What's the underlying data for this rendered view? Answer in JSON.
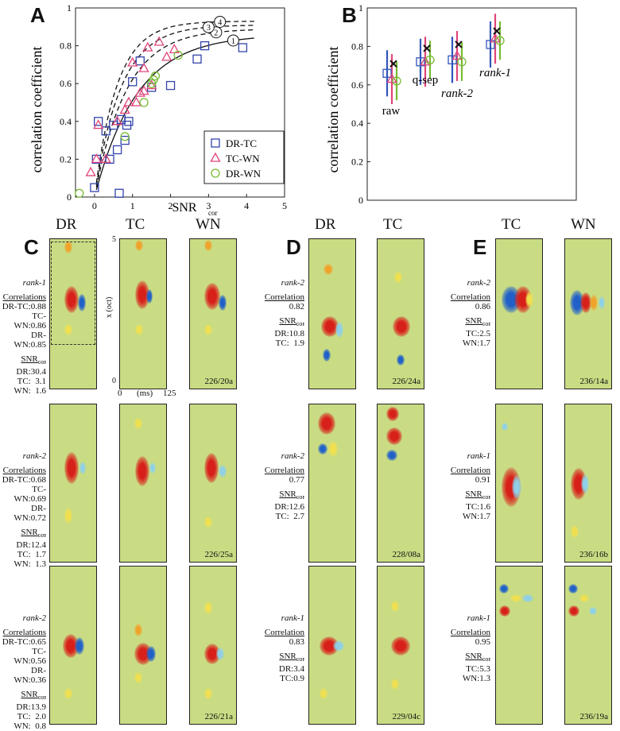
{
  "panel_letters": {
    "a": "A",
    "b": "B",
    "c": "C",
    "d": "D",
    "e": "E"
  },
  "chart_data": [
    {
      "type": "scatter",
      "panel": "A",
      "xlabel": "SNR",
      "xlabel_sub": "cor",
      "ylabel": "correlation coefficient",
      "xlim": [
        -0.5,
        5
      ],
      "ylim": [
        0,
        1
      ],
      "xticks": [
        "0",
        "1",
        "2",
        "3",
        "4",
        "5"
      ],
      "yticks": [
        "0",
        "0.2",
        "0.4",
        "0.6",
        "0.8",
        "1"
      ],
      "curve_labels": [
        "1",
        "2",
        "3",
        "4"
      ],
      "series": [
        {
          "name": "DR-TC",
          "marker": "square",
          "color": "#3344aa",
          "points": [
            [
              0,
              0.05
            ],
            [
              0.05,
              0.2
            ],
            [
              0.1,
              0.4
            ],
            [
              0.3,
              0.35
            ],
            [
              0.4,
              0.2
            ],
            [
              0.5,
              0.38
            ],
            [
              0.6,
              0.25
            ],
            [
              0.65,
              0.02
            ],
            [
              0.7,
              0.41
            ],
            [
              0.8,
              0.3
            ],
            [
              0.85,
              0.38
            ],
            [
              0.9,
              0.4
            ],
            [
              1.0,
              0.61
            ],
            [
              1.2,
              0.72
            ],
            [
              1.5,
              0.58
            ],
            [
              2.0,
              0.59
            ],
            [
              2.7,
              0.73
            ],
            [
              2.9,
              0.8
            ],
            [
              3.9,
              0.79
            ]
          ]
        },
        {
          "name": "TC-WN",
          "marker": "triangle",
          "color": "#e0457a",
          "points": [
            [
              -0.1,
              0.13
            ],
            [
              0.05,
              0.2
            ],
            [
              0.1,
              0.38
            ],
            [
              0.3,
              0.2
            ],
            [
              0.6,
              0.4
            ],
            [
              0.8,
              0.46
            ],
            [
              0.9,
              0.5
            ],
            [
              1.1,
              0.5
            ],
            [
              1.2,
              0.55
            ],
            [
              1.3,
              0.56
            ],
            [
              1.5,
              0.59
            ],
            [
              1.3,
              0.68
            ],
            [
              1.0,
              0.71
            ],
            [
              1.4,
              0.79
            ],
            [
              1.7,
              0.82
            ],
            [
              2.1,
              0.78
            ],
            [
              1.9,
              0.74
            ]
          ]
        },
        {
          "name": "DR-WN",
          "marker": "circle",
          "color": "#77bb33",
          "points": [
            [
              -0.4,
              0.02
            ],
            [
              0.8,
              0.32
            ],
            [
              1.3,
              0.5
            ],
            [
              1.5,
              0.6
            ],
            [
              1.55,
              0.62
            ],
            [
              1.6,
              0.64
            ],
            [
              2.2,
              0.75
            ]
          ]
        }
      ]
    },
    {
      "type": "scatter",
      "panel": "B",
      "ylabel": "correlation coefficient",
      "ylim": [
        0,
        1
      ],
      "yticks": [
        "0",
        "0.2",
        "0.4",
        "0.6",
        "0.8",
        "1"
      ],
      "categories": [
        "raw",
        "q-sep",
        "rank-2",
        "rank-1"
      ],
      "series": [
        {
          "name": "DR-TC",
          "marker": "square",
          "color": "#3355bb",
          "values": [
            0.66,
            0.72,
            0.73,
            0.81
          ]
        },
        {
          "name": "TC-WN",
          "marker": "triangle",
          "color": "#e0457a",
          "values": [
            0.63,
            0.72,
            0.75,
            0.84
          ]
        },
        {
          "name": "DR-WN",
          "marker": "circle",
          "color": "#77bb33",
          "values": [
            0.62,
            0.73,
            0.72,
            0.83
          ]
        },
        {
          "name": "mean",
          "marker": "x",
          "color": "#111111",
          "values": [
            0.71,
            0.79,
            0.81,
            0.88
          ]
        }
      ]
    }
  ],
  "strf_axes": {
    "x_label": "x (oct)",
    "t_label": "(ms)",
    "t0": "0",
    "t1": "125",
    "x0": "0",
    "x1": "5"
  },
  "panels": {
    "C": {
      "columns": [
        "DR",
        "TC",
        "WN"
      ],
      "rows": [
        {
          "rank": "rank-1",
          "corr_title": "Correlations",
          "corr": [
            "DR-TC:0.88",
            "TC-WN:0.86",
            "DR-WN:0.85"
          ],
          "snr_title": "SNR",
          "snr_sub": "cor",
          "snr": [
            "DR:30.4",
            "TC:  3.1",
            "WN:  1.6"
          ],
          "id": "226/20a"
        },
        {
          "rank": "rank-2",
          "corr_title": "Correlations",
          "corr": [
            "DR-TC:0.68",
            "TC-WN:0.69",
            "DR-WN:0.72"
          ],
          "snr_title": "SNR",
          "snr_sub": "cor",
          "snr": [
            "DR:12.4",
            "TC:  1.7",
            "WN:  1.3"
          ],
          "id": "226/25a"
        },
        {
          "rank": "rank-2",
          "corr_title": "Correlations",
          "corr": [
            "DR-TC:0.65",
            "TC-WN:0.56",
            "DR-WN:0.36"
          ],
          "snr_title": "SNR",
          "snr_sub": "cor",
          "snr": [
            "DR:13.9",
            "TC:  2.0",
            "WN:  0.8"
          ],
          "id": "226/21a"
        }
      ]
    },
    "D": {
      "columns": [
        "DR",
        "TC"
      ],
      "rows": [
        {
          "rank": "rank-2",
          "corr_title": "Correlation",
          "corr": [
            "0.82"
          ],
          "snr_title": "SNR",
          "snr_sub": "cor",
          "snr": [
            "DR:10.8",
            "TC:  1.9"
          ],
          "id": "226/24a"
        },
        {
          "rank": "rank-2",
          "corr_title": "Correlation",
          "corr": [
            "0.77"
          ],
          "snr_title": "SNR",
          "snr_sub": "cor",
          "snr": [
            "DR:12.6",
            "TC:  2.7"
          ],
          "id": "228/08a"
        },
        {
          "rank": "rank-1",
          "corr_title": "Correlation",
          "corr": [
            "0.83"
          ],
          "snr_title": "SNR",
          "snr_sub": "cor",
          "snr": [
            "DR:3.4",
            "TC:0.9"
          ],
          "id": "229/04c"
        }
      ]
    },
    "E": {
      "columns": [
        "TC",
        "WN"
      ],
      "rows": [
        {
          "rank": "rank-2",
          "corr_title": "Correlation",
          "corr": [
            "0.86"
          ],
          "snr_title": "SNR",
          "snr_sub": "cor",
          "snr": [
            "TC:2.5",
            "WN:1.7"
          ],
          "id": "236/14a"
        },
        {
          "rank": "rank-1",
          "corr_title": "Correlation",
          "corr": [
            "0.91"
          ],
          "snr_title": "SNR",
          "snr_sub": "cor",
          "snr": [
            "TC:1.6",
            "WN:1.7"
          ],
          "id": "236/16b"
        },
        {
          "rank": "rank-1",
          "corr_title": "Correlation",
          "corr": [
            "0.95"
          ],
          "snr_title": "SNR",
          "snr_sub": "cor",
          "snr": [
            "TC:5.3",
            "WN:1.3"
          ],
          "id": "236/19a"
        }
      ]
    }
  }
}
